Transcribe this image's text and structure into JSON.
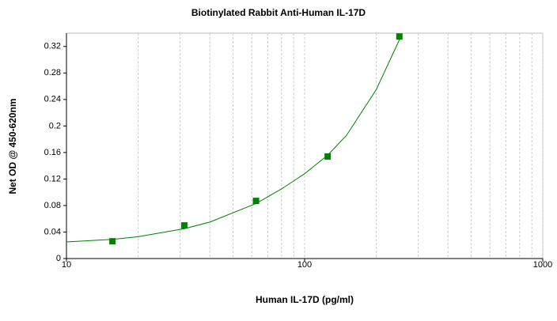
{
  "chart_data": {
    "type": "scatter",
    "title": "Biotinylated Rabbit Anti-Human IL-17D",
    "x_label": "Human IL-17D (pg/ml)",
    "y_label": "Net OD @ 450-620nm",
    "x_scale": "log",
    "xlim": [
      10,
      1000
    ],
    "xticks": [
      10,
      100,
      1000
    ],
    "xgrid": [
      20,
      30,
      40,
      50,
      60,
      70,
      80,
      90,
      200,
      300,
      400,
      500,
      600,
      700,
      800,
      900
    ],
    "ylim": [
      0,
      0.34
    ],
    "yticks": [
      0,
      0.04,
      0.08,
      0.12,
      0.16,
      0.2,
      0.24,
      0.28,
      0.32
    ],
    "points": {
      "color": "#008000",
      "x": [
        15.6,
        31.25,
        62.5,
        125,
        250
      ],
      "values": [
        0.026,
        0.05,
        0.087,
        0.154,
        0.335
      ]
    },
    "fit": {
      "color": "#008000",
      "x": [
        10,
        15.6,
        20,
        31.25,
        40,
        62.5,
        80,
        100,
        125,
        150,
        200,
        250,
        260
      ],
      "values": [
        0.025,
        0.029,
        0.033,
        0.045,
        0.055,
        0.083,
        0.105,
        0.128,
        0.156,
        0.186,
        0.255,
        0.33,
        0.345
      ]
    }
  }
}
